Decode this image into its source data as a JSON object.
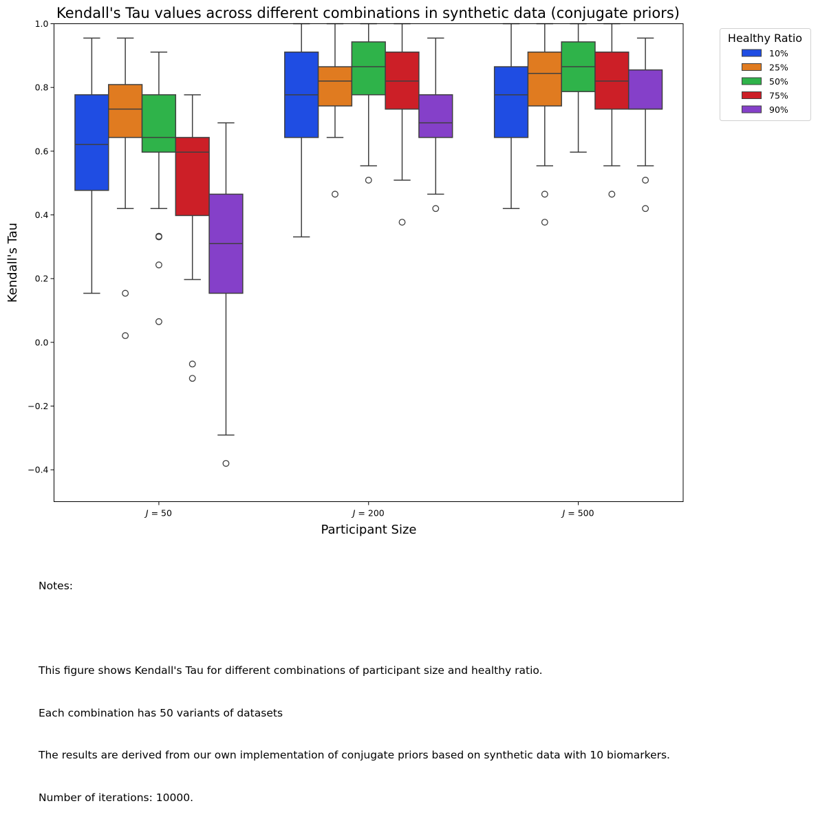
{
  "chart_data": {
    "type": "box",
    "title": "Kendall's Tau values across different combinations in synthetic data (conjugate priors)",
    "xlabel": "Participant Size",
    "ylabel": "Kendall's Tau",
    "ylim": [
      -0.5,
      1.0
    ],
    "yticks": [
      -0.4,
      -0.2,
      0.0,
      0.2,
      0.4,
      0.6,
      0.8,
      1.0
    ],
    "ytick_labels": [
      "−0.4",
      "−0.2",
      "0.0",
      "0.2",
      "0.4",
      "0.6",
      "0.8",
      "1.0"
    ],
    "categories": [
      "J = 50",
      "J = 200",
      "J = 500"
    ],
    "category_tick_labels": [
      {
        "var": "J",
        "eq": " = ",
        "num": "50"
      },
      {
        "var": "J",
        "eq": " = ",
        "num": "200"
      },
      {
        "var": "J",
        "eq": " = ",
        "num": "500"
      }
    ],
    "grid": false,
    "legend": {
      "title": "Healthy Ratio",
      "placement": "outside-top-right",
      "entries": [
        "10%",
        "25%",
        "50%",
        "75%",
        "90%"
      ]
    },
    "series": [
      {
        "name": "10%",
        "color": "#1f4de3",
        "boxes": [
          {
            "whislo": 0.154,
            "q1": 0.477,
            "med": 0.621,
            "q3": 0.777,
            "whishi": 0.955,
            "fliers": []
          },
          {
            "whislo": 0.331,
            "q1": 0.643,
            "med": 0.777,
            "q3": 0.911,
            "whishi": 1.0,
            "fliers": []
          },
          {
            "whislo": 0.42,
            "q1": 0.643,
            "med": 0.777,
            "q3": 0.865,
            "whishi": 1.0,
            "fliers": []
          }
        ]
      },
      {
        "name": "25%",
        "color": "#e07b20",
        "boxes": [
          {
            "whislo": 0.42,
            "q1": 0.643,
            "med": 0.732,
            "q3": 0.809,
            "whishi": 0.955,
            "fliers": [
              0.154,
              0.021
            ]
          },
          {
            "whislo": 0.643,
            "q1": 0.742,
            "med": 0.82,
            "q3": 0.865,
            "whishi": 1.0,
            "fliers": [
              0.465
            ]
          },
          {
            "whislo": 0.554,
            "q1": 0.742,
            "med": 0.844,
            "q3": 0.911,
            "whishi": 1.0,
            "fliers": [
              0.465,
              0.377
            ]
          }
        ]
      },
      {
        "name": "50%",
        "color": "#2fb34a",
        "boxes": [
          {
            "whislo": 0.42,
            "q1": 0.597,
            "med": 0.643,
            "q3": 0.777,
            "whishi": 0.911,
            "fliers": [
              0.333,
              0.331,
              0.243,
              0.065
            ]
          },
          {
            "whislo": 0.554,
            "q1": 0.777,
            "med": 0.865,
            "q3": 0.943,
            "whishi": 1.0,
            "fliers": [
              0.509
            ]
          },
          {
            "whislo": 0.597,
            "q1": 0.787,
            "med": 0.865,
            "q3": 0.943,
            "whishi": 1.0,
            "fliers": []
          }
        ]
      },
      {
        "name": "75%",
        "color": "#cc1f27",
        "boxes": [
          {
            "whislo": 0.197,
            "q1": 0.398,
            "med": 0.597,
            "q3": 0.643,
            "whishi": 0.777,
            "fliers": [
              -0.068,
              -0.113
            ]
          },
          {
            "whislo": 0.509,
            "q1": 0.732,
            "med": 0.82,
            "q3": 0.911,
            "whishi": 1.0,
            "fliers": [
              0.377
            ]
          },
          {
            "whislo": 0.554,
            "q1": 0.732,
            "med": 0.82,
            "q3": 0.911,
            "whishi": 1.0,
            "fliers": [
              0.465
            ]
          }
        ]
      },
      {
        "name": "90%",
        "color": "#8540c9",
        "boxes": [
          {
            "whislo": -0.291,
            "q1": 0.154,
            "med": 0.31,
            "q3": 0.465,
            "whishi": 0.689,
            "fliers": [
              -0.38
            ]
          },
          {
            "whislo": 0.465,
            "q1": 0.643,
            "med": 0.689,
            "q3": 0.777,
            "whishi": 0.955,
            "fliers": [
              0.42
            ]
          },
          {
            "whislo": 0.554,
            "q1": 0.732,
            "med": 0.732,
            "q3": 0.855,
            "whishi": 0.955,
            "fliers": [
              0.509,
              0.42
            ]
          }
        ]
      }
    ]
  },
  "notes": {
    "heading": "Notes:",
    "lines": [
      "This figure shows Kendall's Tau for different combinations of participant size and healthy ratio.",
      "Each combination has 50 variants of datasets",
      "The results are derived from our own implementation of conjugate priors based on synthetic data with 10 biomarkers.",
      "Number of iterations: 10000."
    ]
  }
}
